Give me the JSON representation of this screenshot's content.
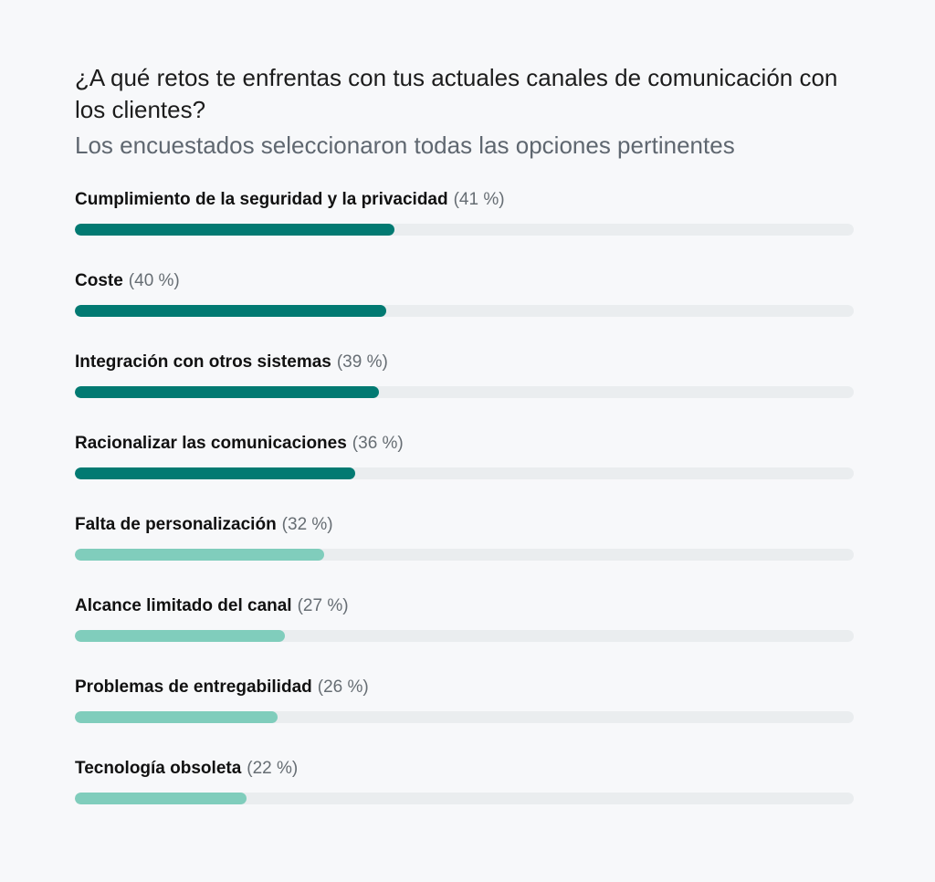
{
  "chart_data": {
    "type": "bar",
    "orientation": "horizontal",
    "title": "¿A qué retos te enfrentas con tus actuales canales de comunicación con los clientes?",
    "subtitle": "Los encuestados seleccionaron todas las opciones pertinentes",
    "xlim": [
      0,
      100
    ],
    "grid": false,
    "unit": "%",
    "colors": {
      "dark": "#027a72",
      "light": "#80cdbc",
      "track": "#eaedef"
    },
    "categories": [
      "Cumplimiento de la seguridad y la privacidad",
      "Coste",
      "Integración con otros sistemas",
      "Racionalizar las comunicaciones",
      "Falta de personalización",
      "Alcance limitado del canal",
      "Problemas de entregabilidad",
      "Tecnología obsoleta"
    ],
    "values": [
      41,
      40,
      39,
      36,
      32,
      27,
      26,
      22
    ],
    "value_labels": [
      "(41 %)",
      "(40 %)",
      "(39 %)",
      "(36 %)",
      "(32 %)",
      "(27 %)",
      "(26 %)",
      "(22 %)"
    ],
    "color_group": [
      "dark",
      "dark",
      "dark",
      "dark",
      "light",
      "light",
      "light",
      "light"
    ]
  }
}
